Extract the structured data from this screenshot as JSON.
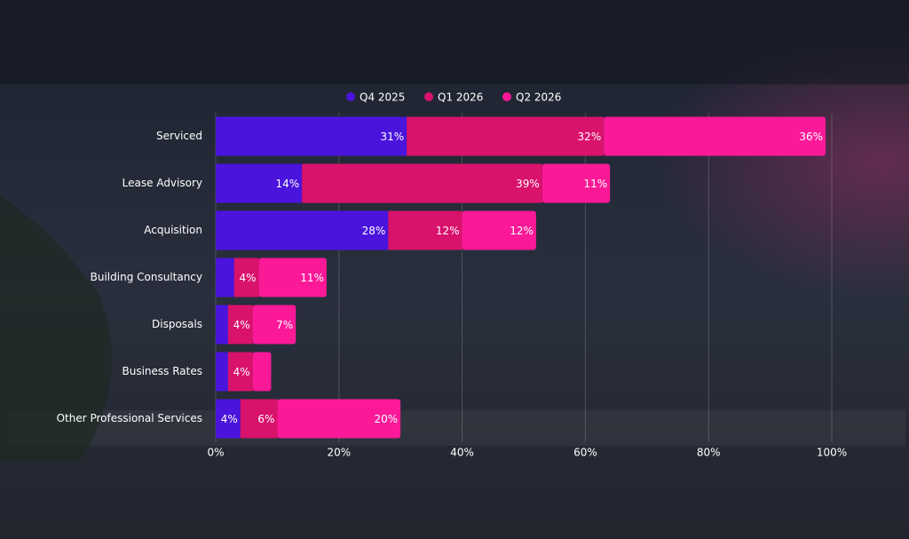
{
  "chart_data": {
    "type": "stacked-bar-horizontal",
    "categories": [
      "Serviced",
      "Lease Advisory",
      "Acquisition",
      "Building Consultancy",
      "Disposals",
      "Business Rates",
      "Other Professional Services"
    ],
    "series": [
      {
        "name": "Q4 2025",
        "color": "#4a14dc",
        "values": [
          31,
          14,
          28,
          3,
          2,
          2,
          4
        ],
        "value_labels": [
          "31%",
          "14%",
          "28%",
          null,
          null,
          null,
          "4%"
        ]
      },
      {
        "name": "Q1 2026",
        "color": "#d9126c",
        "values": [
          32,
          39,
          12,
          4,
          4,
          4,
          6
        ],
        "value_labels": [
          "32%",
          "39%",
          "12%",
          "4%",
          "4%",
          "4%",
          "6%"
        ]
      },
      {
        "name": "Q2 2026",
        "color": "#fb1997",
        "values": [
          36,
          11,
          12,
          11,
          7,
          3,
          20
        ],
        "value_labels": [
          "36%",
          "11%",
          "12%",
          "11%",
          "7%",
          null,
          "20%"
        ]
      }
    ],
    "xlim": [
      0,
      100
    ],
    "xticks": [
      {
        "value": 0,
        "label": "0%"
      },
      {
        "value": 20,
        "label": "20%"
      },
      {
        "value": 40,
        "label": "40%"
      },
      {
        "value": 60,
        "label": "60%"
      },
      {
        "value": 80,
        "label": "80%"
      },
      {
        "value": 100,
        "label": "100%"
      }
    ],
    "grid": true
  }
}
